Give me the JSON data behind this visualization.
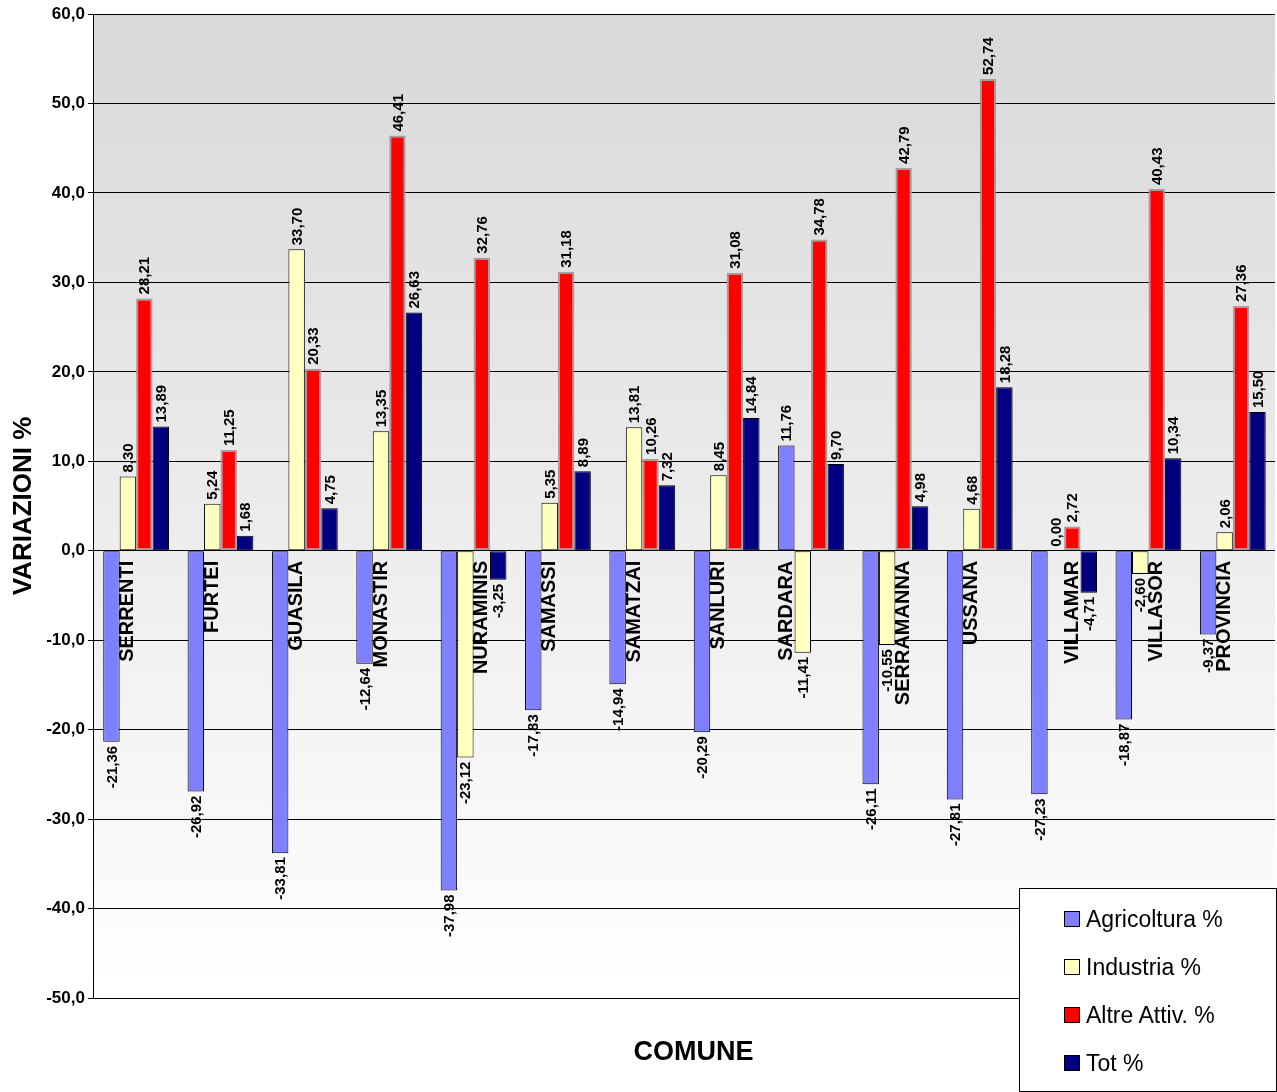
{
  "chart_data": {
    "type": "bar",
    "xlabel": "COMUNE",
    "ylabel": "VARIAZIONI %",
    "categories": [
      "SERRENTI",
      "FURTEI",
      "GUASILA",
      "MONASTIR",
      "NURAMINIS",
      "SAMASSI",
      "SAMATZAI",
      "SANLURI",
      "SARDARA",
      "SERRAMANNA",
      "USSANA",
      "VILLAMAR",
      "VILLASOR",
      "PROVINCIA"
    ],
    "series": [
      {
        "name": "Agricoltura %",
        "color": "#8080ff",
        "values": [
          -21.36,
          -26.92,
          -33.81,
          -12.64,
          -37.98,
          -17.83,
          -14.94,
          -20.29,
          11.76,
          -26.11,
          -27.81,
          -27.23,
          -18.87,
          -9.37
        ],
        "value_labels": [
          "-21,36",
          "-26,92",
          "-33,81",
          "-12,64",
          "-37,98",
          "-17,83",
          "-14,94",
          "-20,29",
          "11,76",
          "-26,11",
          "-27,81",
          "-27,23",
          "-18,87",
          "-9,37"
        ]
      },
      {
        "name": "Industria %",
        "color": "#ffffc0",
        "values": [
          8.3,
          5.24,
          33.7,
          13.35,
          -23.12,
          5.35,
          13.81,
          8.45,
          -11.41,
          -10.55,
          4.68,
          0.0,
          -2.6,
          2.06
        ],
        "value_labels": [
          "8,30",
          "5,24",
          "33,70",
          "13,35",
          "-23,12",
          "5,35",
          "13,81",
          "8,45",
          "-11,41",
          "-10,55",
          "4,68",
          "0,00",
          "-2,60",
          "2,06"
        ]
      },
      {
        "name": "Altre Attiv. %",
        "color": "#ff0000",
        "values": [
          28.21,
          11.25,
          20.33,
          46.41,
          32.76,
          31.18,
          10.26,
          31.08,
          34.78,
          42.79,
          52.74,
          2.72,
          40.43,
          27.36
        ],
        "value_labels": [
          "28,21",
          "11,25",
          "20,33",
          "46,41",
          "32,76",
          "31,18",
          "10,26",
          "31,08",
          "34,78",
          "42,79",
          "52,74",
          "2,72",
          "40,43",
          "27,36"
        ]
      },
      {
        "name": "Tot %",
        "color": "#000080",
        "values": [
          13.89,
          1.68,
          4.75,
          26.63,
          -3.25,
          8.89,
          7.32,
          14.84,
          9.7,
          4.98,
          18.28,
          -4.71,
          10.34,
          15.5
        ],
        "value_labels": [
          "13,89",
          "1,68",
          "4,75",
          "26,63",
          "-3,25",
          "8,89",
          "7,32",
          "14,84",
          "9,70",
          "4,98",
          "18,28",
          "-4,71",
          "10,34",
          "15,50"
        ]
      }
    ],
    "ylim": [
      -50,
      60
    ],
    "yticks": [
      {
        "value": -50,
        "label": "-50,0"
      },
      {
        "value": -40,
        "label": "-40,0"
      },
      {
        "value": -30,
        "label": "-30,0"
      },
      {
        "value": -20,
        "label": "-20,0"
      },
      {
        "value": -10,
        "label": "-10,0"
      },
      {
        "value": 0,
        "label": "0,0"
      },
      {
        "value": 10,
        "label": "10,0"
      },
      {
        "value": 20,
        "label": "20,0"
      },
      {
        "value": 30,
        "label": "30,0"
      },
      {
        "value": 40,
        "label": "40,0"
      },
      {
        "value": 50,
        "label": "50,0"
      },
      {
        "value": 60,
        "label": "60,0"
      }
    ],
    "grid": "y",
    "legend": "bottom right"
  }
}
